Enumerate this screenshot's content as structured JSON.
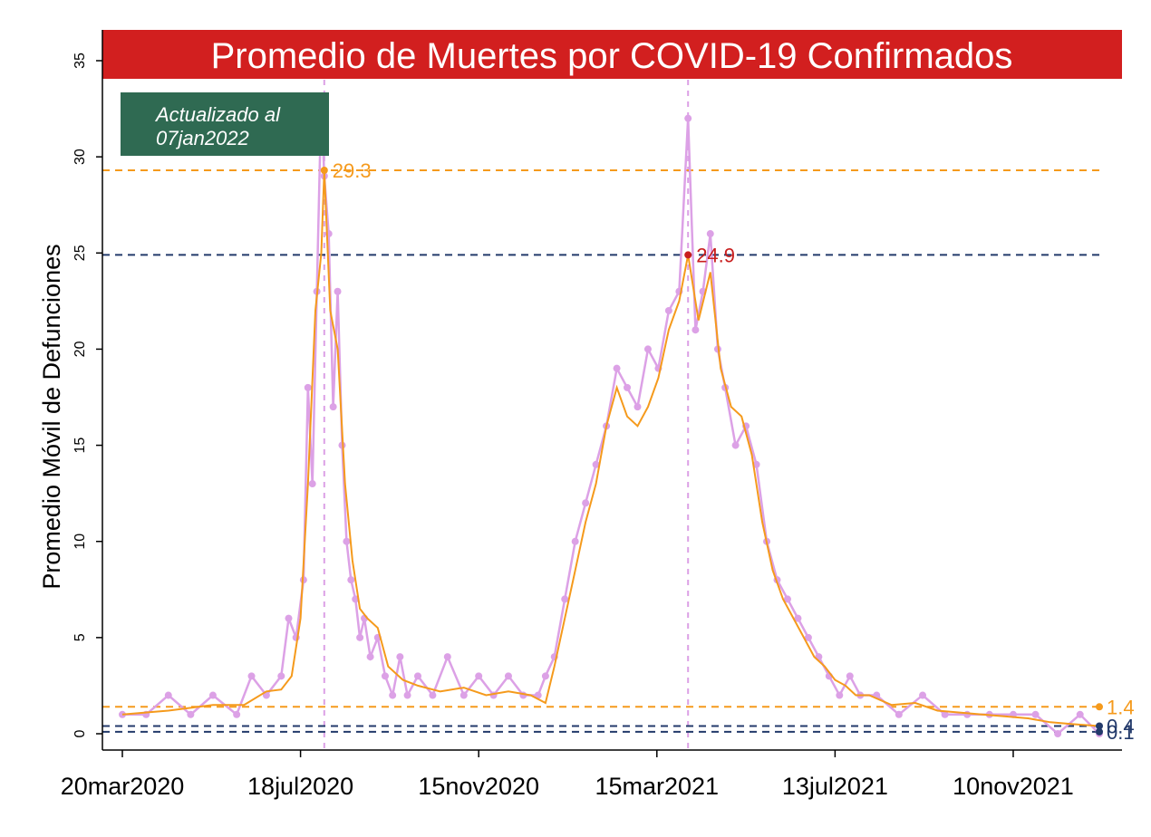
{
  "chart_data": {
    "type": "line",
    "title": "Promedio de Muertes por COVID-19 Confirmados",
    "ylabel": "Promedio Móvil de Defunciones",
    "xlabel": "",
    "ylim": [
      0,
      35
    ],
    "yticks": [
      0,
      5,
      10,
      15,
      20,
      25,
      30,
      35
    ],
    "xlim": [
      "2020-03-20",
      "2022-01-07"
    ],
    "xticks": [
      "20mar2020",
      "18jul2020",
      "15nov2020",
      "15mar2021",
      "13jul2021",
      "10nov2021"
    ],
    "annotation_box": {
      "line1": "Actualizado al",
      "line2": "07jan2022"
    },
    "colors": {
      "title_bar": "#d21f1f",
      "annotation_box": "#2f6a52",
      "daily": "#dca1e6",
      "average": "#f59a1c",
      "navy": "#233a6b",
      "red_label": "#c81e1e"
    },
    "reference_lines": [
      {
        "value": 29.3,
        "color": "orange",
        "label": "29.3",
        "style": "dashed"
      },
      {
        "value": 24.9,
        "color": "navy",
        "label": "24.9",
        "style": "dashed"
      },
      {
        "value": 1.4,
        "color": "orange",
        "label": "1.4",
        "style": "dashed"
      },
      {
        "value": 0.4,
        "color": "navy",
        "label": "0.4",
        "style": "dashed"
      },
      {
        "value": 0.1,
        "color": "navy",
        "label": "0.1",
        "style": "dashed"
      }
    ],
    "vertical_lines": [
      "2020-08-03",
      "2021-04-05"
    ],
    "peak_points": [
      {
        "date": "2020-08-03",
        "value": 29.3,
        "label": "29.3"
      },
      {
        "date": "2021-04-05",
        "value": 24.9,
        "label": "24.9"
      }
    ],
    "end_points": [
      {
        "date": "2022-01-07",
        "value": 1.4,
        "label": "1.4"
      },
      {
        "date": "2022-01-07",
        "value": 0.4,
        "label": "0.4"
      },
      {
        "date": "2022-01-07",
        "value": 0.1,
        "label": "0.1"
      }
    ],
    "series": [
      {
        "kind": "daily",
        "points": [
          [
            "2020-03-20",
            1
          ],
          [
            "2020-04-05",
            1
          ],
          [
            "2020-04-20",
            2
          ],
          [
            "2020-05-05",
            1
          ],
          [
            "2020-05-20",
            2
          ],
          [
            "2020-06-05",
            1
          ],
          [
            "2020-06-15",
            3
          ],
          [
            "2020-06-25",
            2
          ],
          [
            "2020-07-05",
            3
          ],
          [
            "2020-07-10",
            6
          ],
          [
            "2020-07-15",
            5
          ],
          [
            "2020-07-20",
            8
          ],
          [
            "2020-07-23",
            18
          ],
          [
            "2020-07-26",
            13
          ],
          [
            "2020-07-29",
            23
          ],
          [
            "2020-08-01",
            33
          ],
          [
            "2020-08-03",
            29
          ],
          [
            "2020-08-06",
            26
          ],
          [
            "2020-08-09",
            17
          ],
          [
            "2020-08-12",
            23
          ],
          [
            "2020-08-15",
            15
          ],
          [
            "2020-08-18",
            10
          ],
          [
            "2020-08-21",
            8
          ],
          [
            "2020-08-24",
            7
          ],
          [
            "2020-08-27",
            5
          ],
          [
            "2020-08-30",
            6
          ],
          [
            "2020-09-03",
            4
          ],
          [
            "2020-09-08",
            5
          ],
          [
            "2020-09-13",
            3
          ],
          [
            "2020-09-18",
            2
          ],
          [
            "2020-09-23",
            4
          ],
          [
            "2020-09-28",
            2
          ],
          [
            "2020-10-05",
            3
          ],
          [
            "2020-10-15",
            2
          ],
          [
            "2020-10-25",
            4
          ],
          [
            "2020-11-05",
            2
          ],
          [
            "2020-11-15",
            3
          ],
          [
            "2020-11-25",
            2
          ],
          [
            "2020-12-05",
            3
          ],
          [
            "2020-12-15",
            2
          ],
          [
            "2020-12-25",
            2
          ],
          [
            "2020-12-30",
            3
          ],
          [
            "2021-01-05",
            4
          ],
          [
            "2021-01-12",
            7
          ],
          [
            "2021-01-19",
            10
          ],
          [
            "2021-01-26",
            12
          ],
          [
            "2021-02-02",
            14
          ],
          [
            "2021-02-09",
            16
          ],
          [
            "2021-02-16",
            19
          ],
          [
            "2021-02-23",
            18
          ],
          [
            "2021-03-02",
            17
          ],
          [
            "2021-03-09",
            20
          ],
          [
            "2021-03-16",
            19
          ],
          [
            "2021-03-23",
            22
          ],
          [
            "2021-03-30",
            23
          ],
          [
            "2021-04-05",
            32
          ],
          [
            "2021-04-10",
            21
          ],
          [
            "2021-04-15",
            23
          ],
          [
            "2021-04-20",
            26
          ],
          [
            "2021-04-25",
            20
          ],
          [
            "2021-04-30",
            18
          ],
          [
            "2021-05-07",
            15
          ],
          [
            "2021-05-14",
            16
          ],
          [
            "2021-05-21",
            14
          ],
          [
            "2021-05-28",
            10
          ],
          [
            "2021-06-04",
            8
          ],
          [
            "2021-06-11",
            7
          ],
          [
            "2021-06-18",
            6
          ],
          [
            "2021-06-25",
            5
          ],
          [
            "2021-07-02",
            4
          ],
          [
            "2021-07-09",
            3
          ],
          [
            "2021-07-16",
            2
          ],
          [
            "2021-07-23",
            3
          ],
          [
            "2021-07-30",
            2
          ],
          [
            "2021-08-10",
            2
          ],
          [
            "2021-08-25",
            1
          ],
          [
            "2021-09-10",
            2
          ],
          [
            "2021-09-25",
            1
          ],
          [
            "2021-10-10",
            1
          ],
          [
            "2021-10-25",
            1
          ],
          [
            "2021-11-10",
            1
          ],
          [
            "2021-11-25",
            1
          ],
          [
            "2021-12-10",
            0
          ],
          [
            "2021-12-25",
            1
          ],
          [
            "2022-01-07",
            0
          ]
        ]
      },
      {
        "kind": "average",
        "points": [
          [
            "2020-03-20",
            1.0
          ],
          [
            "2020-04-20",
            1.2
          ],
          [
            "2020-05-20",
            1.5
          ],
          [
            "2020-06-10",
            1.5
          ],
          [
            "2020-06-25",
            2.2
          ],
          [
            "2020-07-05",
            2.3
          ],
          [
            "2020-07-12",
            3.0
          ],
          [
            "2020-07-18",
            6.0
          ],
          [
            "2020-07-23",
            13.0
          ],
          [
            "2020-07-28",
            22.0
          ],
          [
            "2020-08-01",
            25.0
          ],
          [
            "2020-08-03",
            29.3
          ],
          [
            "2020-08-07",
            22.0
          ],
          [
            "2020-08-12",
            20.0
          ],
          [
            "2020-08-17",
            13.0
          ],
          [
            "2020-08-22",
            9.0
          ],
          [
            "2020-08-27",
            6.5
          ],
          [
            "2020-09-01",
            6.0
          ],
          [
            "2020-09-08",
            5.5
          ],
          [
            "2020-09-15",
            3.5
          ],
          [
            "2020-09-25",
            2.8
          ],
          [
            "2020-10-05",
            2.5
          ],
          [
            "2020-10-20",
            2.2
          ],
          [
            "2020-11-05",
            2.4
          ],
          [
            "2020-11-20",
            2.0
          ],
          [
            "2020-12-05",
            2.2
          ],
          [
            "2020-12-20",
            2.0
          ],
          [
            "2020-12-30",
            1.6
          ],
          [
            "2021-01-05",
            3.5
          ],
          [
            "2021-01-12",
            6.0
          ],
          [
            "2021-01-19",
            8.5
          ],
          [
            "2021-01-26",
            11.0
          ],
          [
            "2021-02-02",
            13.0
          ],
          [
            "2021-02-09",
            16.0
          ],
          [
            "2021-02-16",
            18.0
          ],
          [
            "2021-02-23",
            16.5
          ],
          [
            "2021-03-02",
            16.0
          ],
          [
            "2021-03-09",
            17.0
          ],
          [
            "2021-03-16",
            18.5
          ],
          [
            "2021-03-23",
            21.0
          ],
          [
            "2021-03-30",
            22.5
          ],
          [
            "2021-04-05",
            24.9
          ],
          [
            "2021-04-12",
            21.5
          ],
          [
            "2021-04-20",
            24.0
          ],
          [
            "2021-04-27",
            19.0
          ],
          [
            "2021-05-04",
            17.0
          ],
          [
            "2021-05-11",
            16.5
          ],
          [
            "2021-05-18",
            14.5
          ],
          [
            "2021-05-25",
            11.0
          ],
          [
            "2021-06-01",
            8.5
          ],
          [
            "2021-06-08",
            7.0
          ],
          [
            "2021-06-15",
            6.0
          ],
          [
            "2021-06-22",
            5.0
          ],
          [
            "2021-06-29",
            4.0
          ],
          [
            "2021-07-06",
            3.5
          ],
          [
            "2021-07-13",
            2.8
          ],
          [
            "2021-07-20",
            2.5
          ],
          [
            "2021-07-27",
            2.0
          ],
          [
            "2021-08-05",
            2.0
          ],
          [
            "2021-08-20",
            1.5
          ],
          [
            "2021-09-05",
            1.6
          ],
          [
            "2021-09-20",
            1.2
          ],
          [
            "2021-10-05",
            1.1
          ],
          [
            "2021-10-20",
            1.0
          ],
          [
            "2021-11-05",
            0.9
          ],
          [
            "2021-11-20",
            0.8
          ],
          [
            "2021-12-05",
            0.6
          ],
          [
            "2021-12-20",
            0.5
          ],
          [
            "2022-01-07",
            0.4
          ]
        ]
      }
    ]
  }
}
